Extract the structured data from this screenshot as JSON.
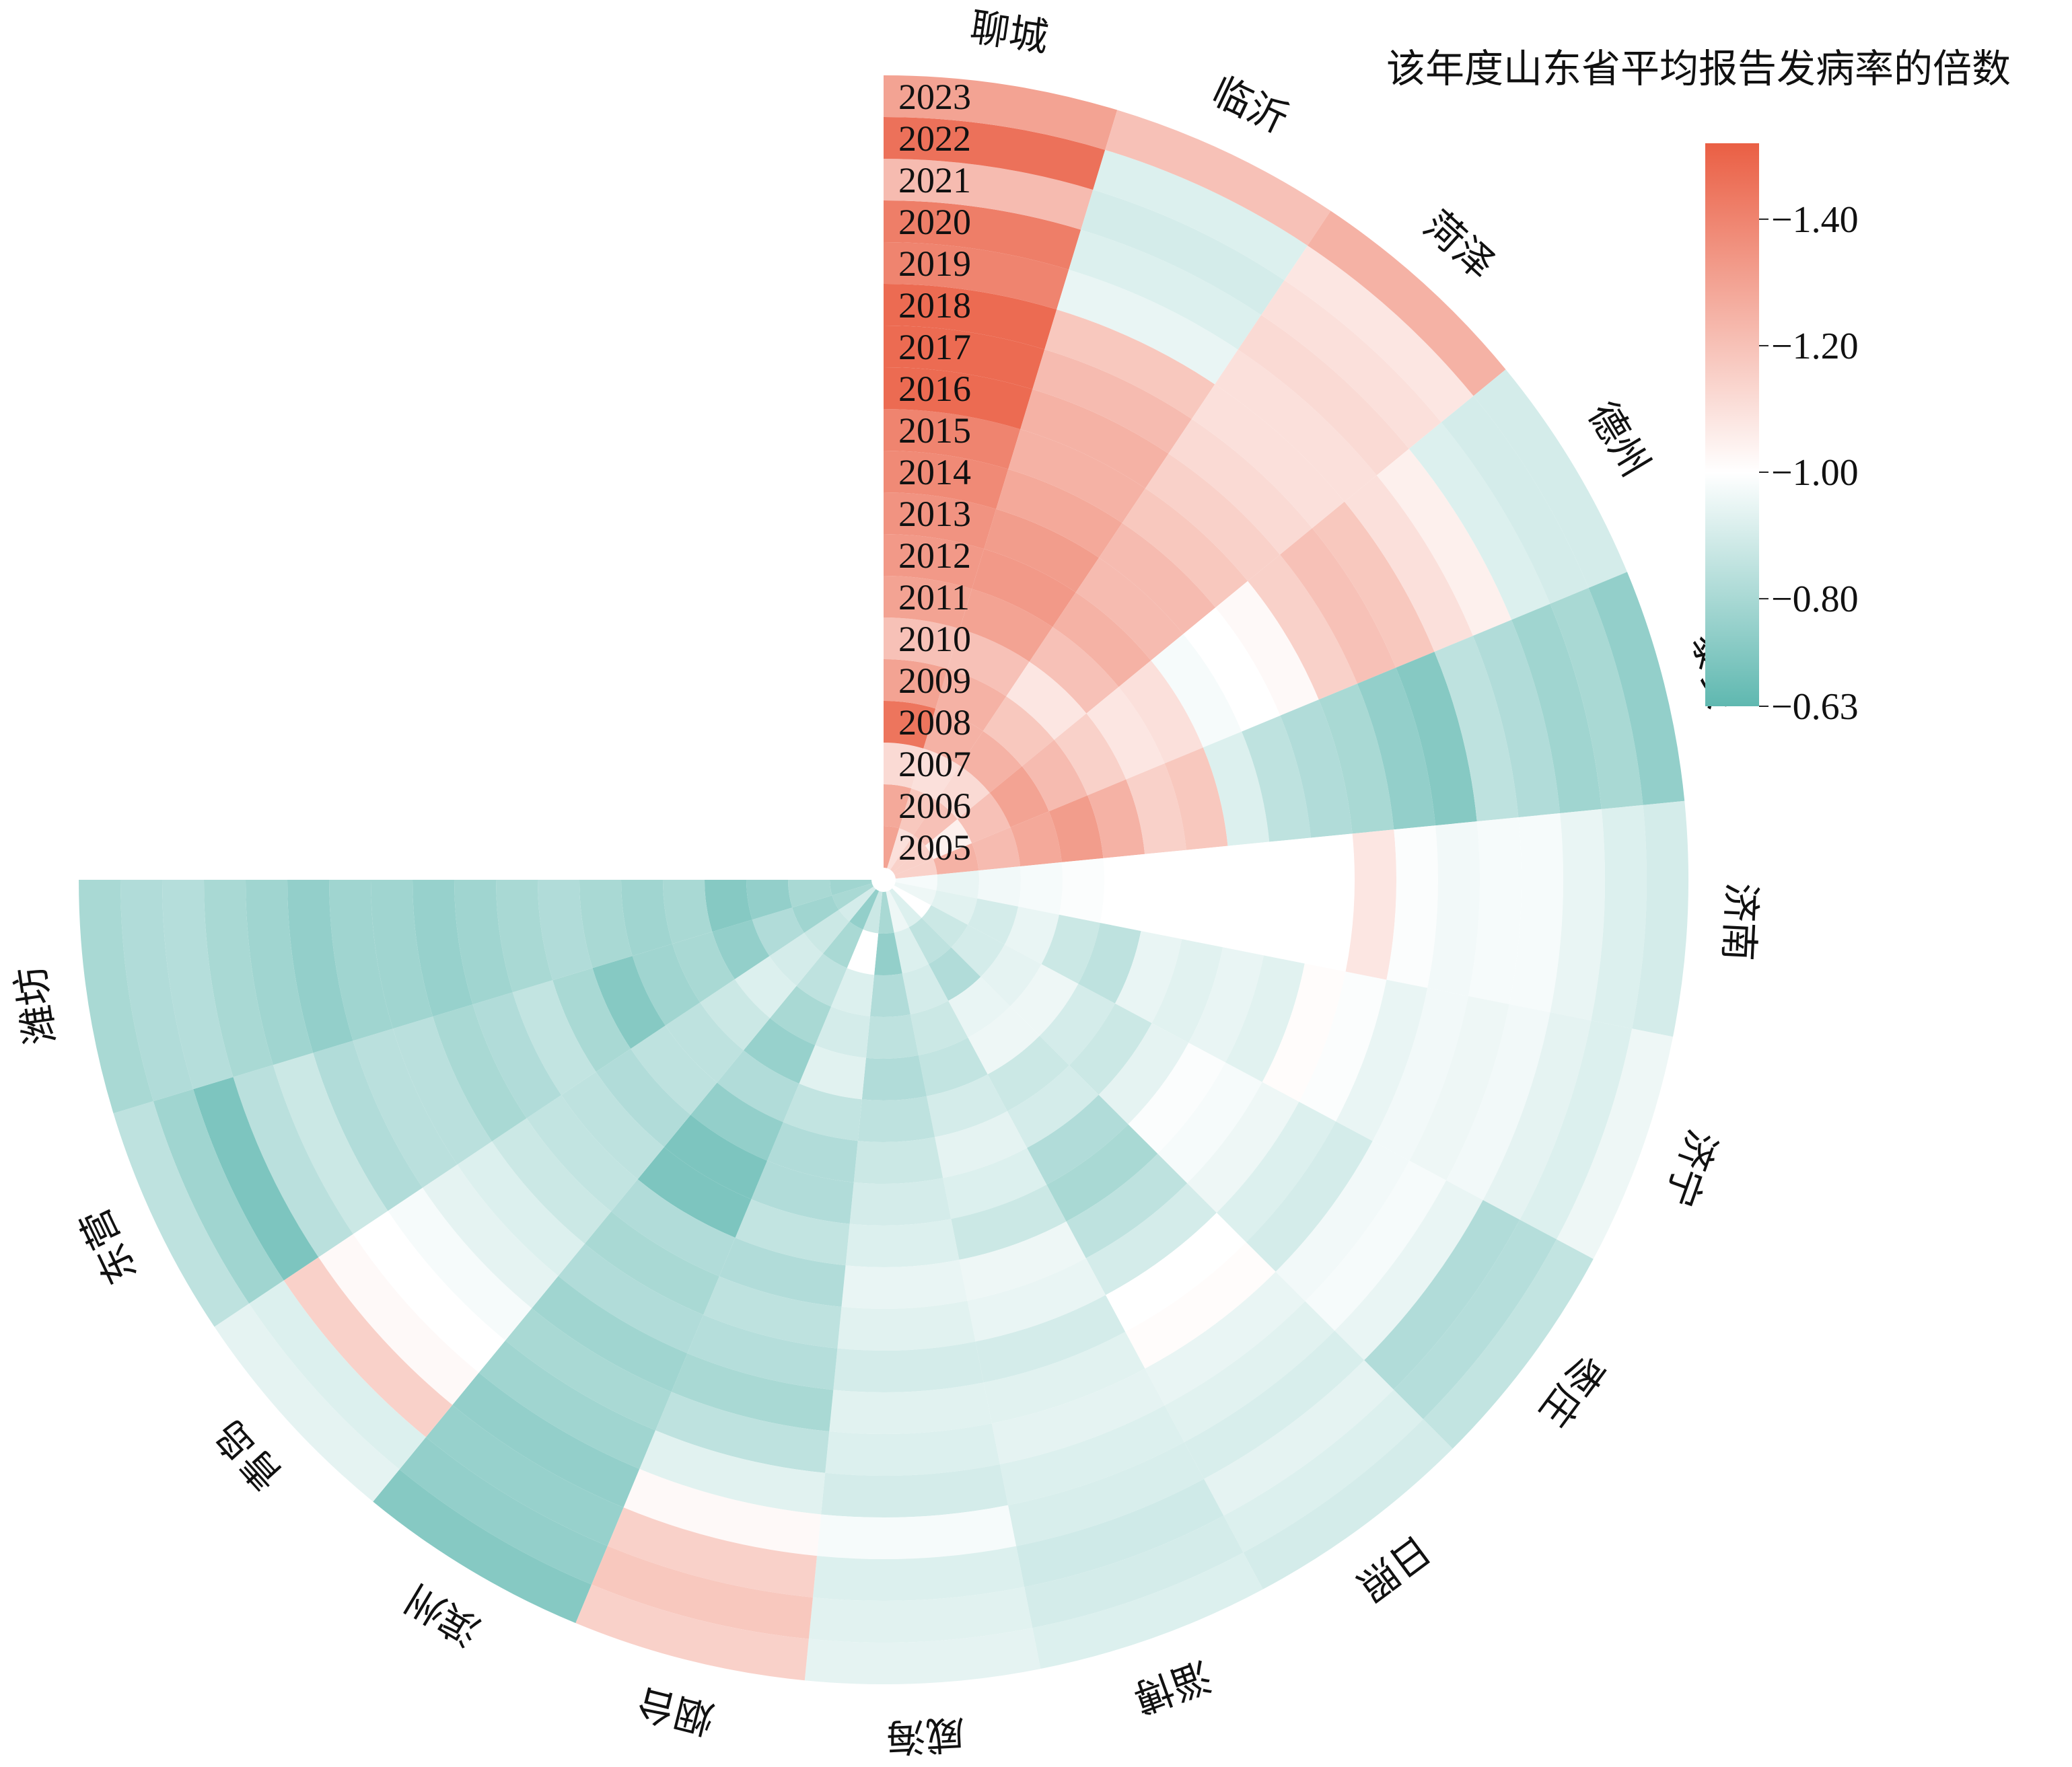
{
  "chart_data": {
    "type": "heatmap",
    "layout": "polar",
    "colorbar": {
      "title": "该年度山东省平均报告发病率的倍数",
      "ticks": [
        "−1.40",
        "−1.20",
        "−1.00",
        "−0.80",
        "−0.63"
      ],
      "tick_values": [
        1.4,
        1.2,
        1.0,
        0.8,
        0.63
      ],
      "range": [
        0.63,
        1.52
      ],
      "colors": {
        "low": "#5fb8b0",
        "mid": "#ffffff",
        "high": "#ea5f44"
      }
    },
    "years": [
      "2005",
      "2006",
      "2007",
      "2008",
      "2009",
      "2010",
      "2011",
      "2012",
      "2013",
      "2014",
      "2015",
      "2016",
      "2017",
      "2018",
      "2019",
      "2020",
      "2021",
      "2022",
      "2023"
    ],
    "cities": [
      "聊城",
      "临沂",
      "菏泽",
      "德州",
      "泰安",
      "济南",
      "济宁",
      "枣庄",
      "日照",
      "淄博",
      "威海",
      "烟台",
      "滨州",
      "青岛",
      "东营",
      "潍坊"
    ],
    "values": {
      "聊城": [
        1.3,
        1.28,
        1.12,
        1.45,
        1.3,
        1.2,
        1.3,
        1.33,
        1.35,
        1.38,
        1.4,
        1.48,
        1.48,
        1.48,
        1.4,
        1.42,
        1.22,
        1.46,
        1.3
      ],
      "临沂": [
        1.1,
        1.18,
        1.1,
        1.25,
        1.25,
        1.2,
        1.3,
        1.33,
        1.32,
        1.28,
        1.25,
        1.25,
        1.22,
        1.18,
        0.95,
        0.92,
        0.9,
        0.92,
        1.2
      ],
      "菏泽": [
        1.15,
        1.2,
        1.12,
        1.25,
        1.18,
        1.08,
        1.2,
        1.25,
        1.22,
        1.22,
        1.18,
        1.15,
        1.12,
        1.1,
        1.1,
        1.12,
        1.1,
        1.08,
        1.25
      ],
      "德州": [
        1.15,
        1.05,
        1.2,
        1.3,
        1.22,
        1.15,
        1.08,
        1.1,
        0.98,
        1.0,
        1.02,
        1.15,
        1.2,
        1.18,
        1.1,
        1.05,
        0.92,
        0.9,
        0.9
      ],
      "泰安": [
        1.15,
        1.25,
        1.22,
        1.28,
        1.32,
        1.25,
        1.15,
        1.18,
        0.92,
        0.85,
        0.82,
        0.8,
        0.75,
        0.72,
        0.85,
        0.82,
        0.78,
        0.8,
        0.75
      ],
      "济南": [
        0.98,
        0.95,
        0.97,
        0.98,
        0.99,
        1.0,
        1.0,
        1.0,
        1.0,
        1.0,
        1.0,
        1.08,
        0.99,
        0.97,
        0.98,
        0.98,
        0.95,
        0.92,
        0.9
      ],
      "济宁": [
        0.96,
        0.93,
        0.9,
        0.95,
        0.88,
        0.85,
        0.95,
        0.93,
        0.95,
        0.93,
        1.01,
        0.99,
        0.95,
        0.97,
        0.96,
        0.97,
        0.94,
        0.92,
        0.96
      ],
      "枣庄": [
        1.0,
        0.88,
        0.9,
        0.94,
        0.96,
        0.9,
        0.88,
        0.94,
        0.99,
        0.98,
        0.96,
        0.92,
        0.9,
        0.97,
        0.98,
        0.95,
        0.82,
        0.83,
        0.86
      ],
      "日照": [
        0.92,
        0.85,
        0.82,
        0.95,
        0.96,
        0.88,
        0.9,
        0.82,
        0.8,
        0.85,
        0.9,
        1.0,
        1.01,
        0.95,
        0.93,
        0.91,
        0.94,
        0.92,
        0.9
      ],
      "淄博": [
        0.96,
        0.92,
        0.9,
        0.88,
        0.86,
        0.9,
        0.94,
        0.92,
        0.88,
        0.96,
        0.95,
        0.9,
        0.93,
        0.94,
        0.92,
        0.91,
        0.89,
        0.9,
        0.92
      ],
      "威海": [
        0.8,
        0.75,
        0.82,
        0.85,
        0.82,
        0.85,
        0.88,
        0.9,
        0.92,
        0.95,
        0.93,
        0.9,
        0.93,
        0.92,
        0.9,
        0.98,
        0.92,
        0.93,
        0.94
      ],
      "烟台": [
        0.88,
        1.0,
        0.92,
        0.9,
        0.93,
        0.86,
        0.82,
        0.82,
        0.86,
        0.82,
        0.85,
        0.83,
        0.8,
        0.85,
        0.93,
        1.02,
        1.15,
        1.18,
        1.15
      ],
      "滨州": [
        0.75,
        0.8,
        0.85,
        0.8,
        0.76,
        0.82,
        0.75,
        0.7,
        0.7,
        0.82,
        0.8,
        0.82,
        0.78,
        0.8,
        0.78,
        0.75,
        0.76,
        0.75,
        0.72
      ],
      "青岛": [
        0.9,
        0.88,
        0.9,
        0.92,
        0.88,
        0.85,
        0.85,
        0.82,
        0.85,
        0.86,
        0.88,
        0.92,
        0.94,
        0.98,
        1.0,
        1.02,
        1.15,
        0.92,
        0.94
      ],
      "东营": [
        0.8,
        0.78,
        0.82,
        0.75,
        0.8,
        0.78,
        0.72,
        0.8,
        0.86,
        0.82,
        0.8,
        0.84,
        0.84,
        0.82,
        0.88,
        0.84,
        0.7,
        0.78,
        0.85
      ],
      "潍坊": [
        0.78,
        0.8,
        0.75,
        0.72,
        0.8,
        0.78,
        0.8,
        0.82,
        0.8,
        0.78,
        0.76,
        0.78,
        0.78,
        0.75,
        0.78,
        0.8,
        0.83,
        0.82,
        0.8
      ]
    }
  }
}
